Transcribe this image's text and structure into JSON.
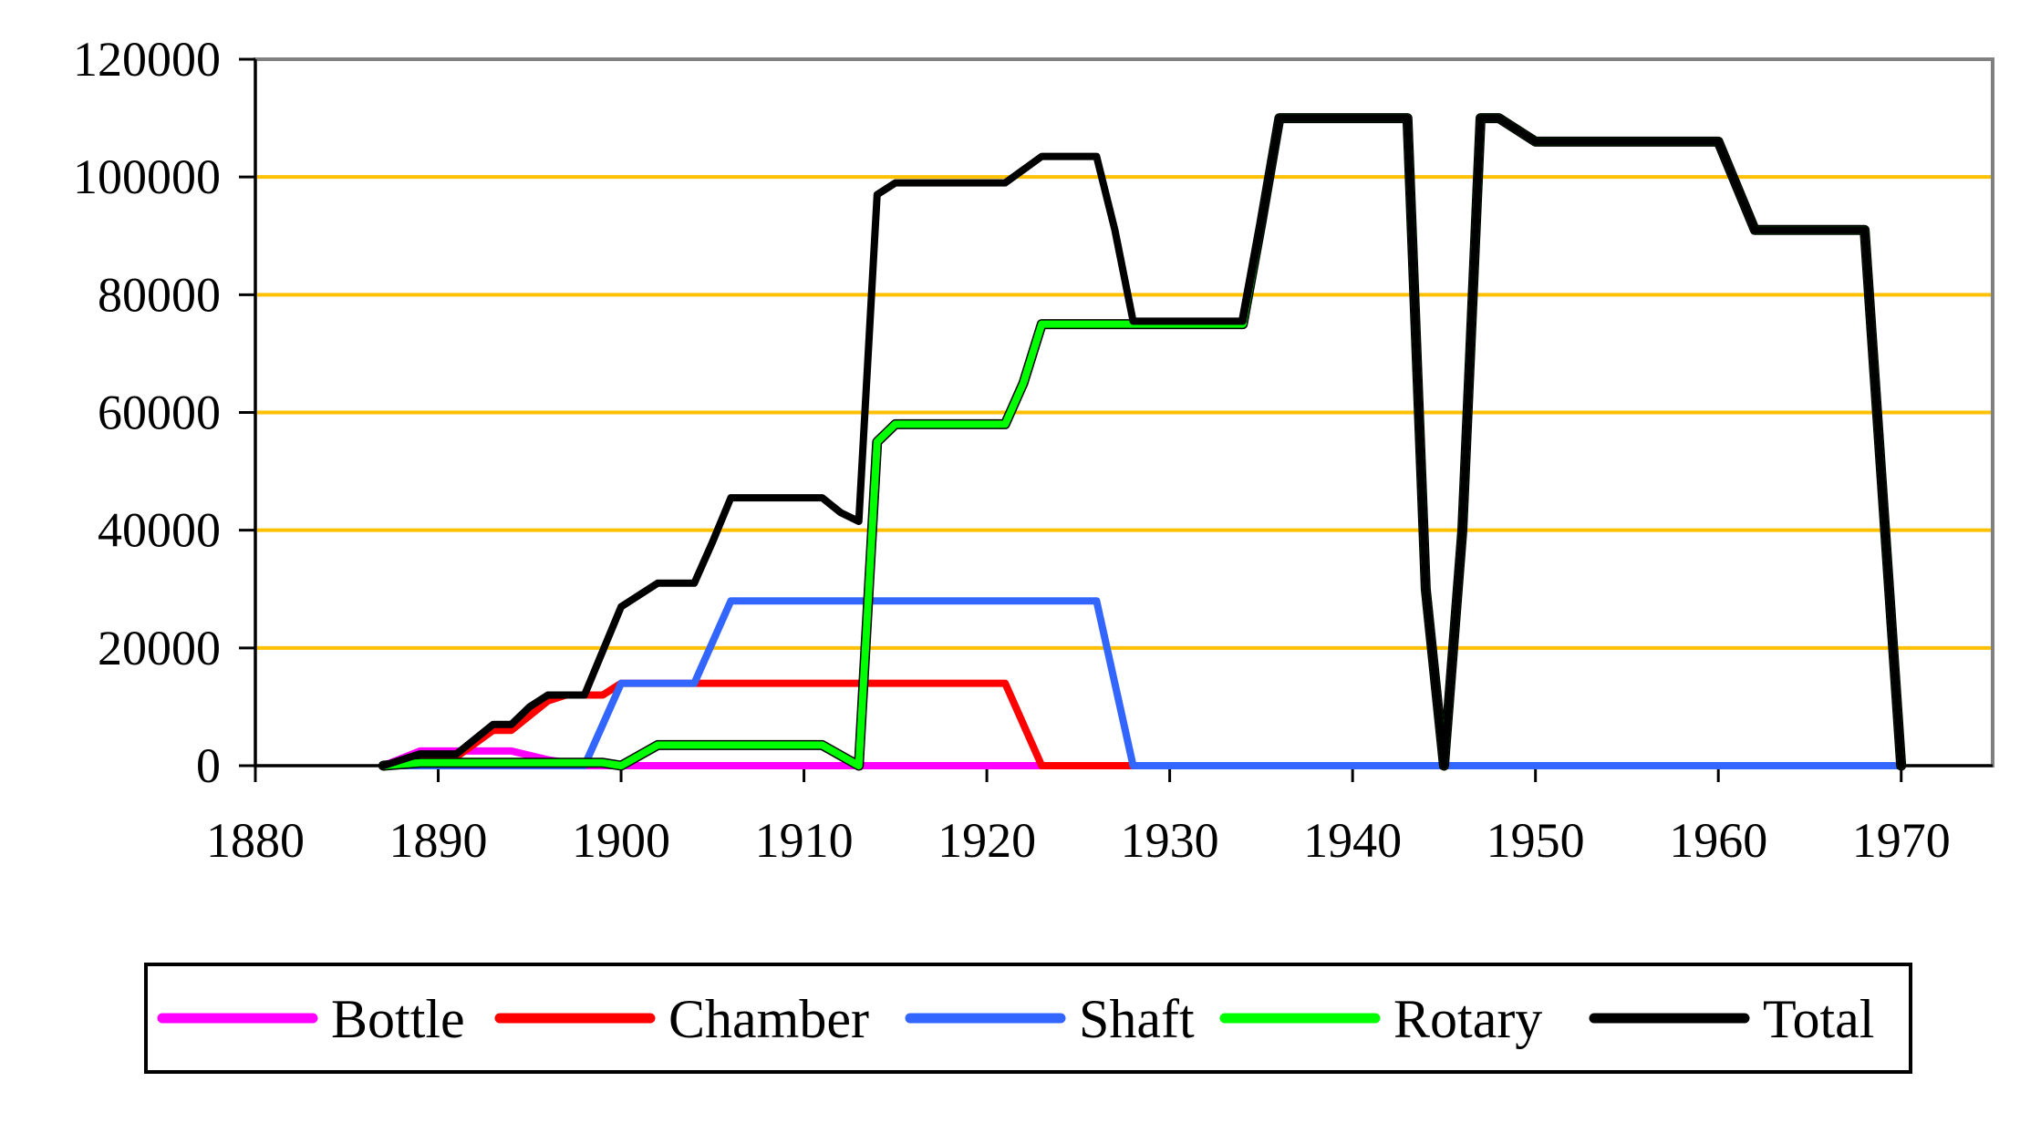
{
  "chart_data": {
    "type": "line",
    "title": "",
    "xlabel": "",
    "ylabel": "",
    "xlim": [
      1880,
      1975
    ],
    "ylim": [
      0,
      120000
    ],
    "x_ticks": [
      1880,
      1890,
      1900,
      1910,
      1920,
      1930,
      1940,
      1950,
      1960,
      1970
    ],
    "y_ticks": [
      0,
      20000,
      40000,
      60000,
      80000,
      100000,
      120000
    ],
    "x_tick_labels": [
      "1880",
      "1890",
      "1900",
      "1910",
      "1920",
      "1930",
      "1940",
      "1950",
      "1960",
      "1970"
    ],
    "y_tick_labels": [
      "0",
      "20000",
      "40000",
      "60000",
      "80000",
      "100000",
      "120000"
    ],
    "grid": "horizontal",
    "grid_color": "#FFC000",
    "legend_position": "bottom",
    "series": [
      {
        "name": "Bottle",
        "color": "#FF00FF",
        "points": [
          [
            1887,
            0
          ],
          [
            1889,
            2500
          ],
          [
            1891,
            2500
          ],
          [
            1893,
            2500
          ],
          [
            1894,
            2500
          ],
          [
            1896,
            1000
          ],
          [
            1898,
            0
          ],
          [
            1900,
            0
          ],
          [
            1913,
            0
          ],
          [
            1923,
            0
          ],
          [
            1928,
            0
          ],
          [
            1970,
            0
          ]
        ]
      },
      {
        "name": "Chamber",
        "color": "#FF0000",
        "points": [
          [
            1887,
            0
          ],
          [
            1889,
            1500
          ],
          [
            1891,
            1500
          ],
          [
            1893,
            6000
          ],
          [
            1894,
            6000
          ],
          [
            1896,
            11000
          ],
          [
            1897,
            12000
          ],
          [
            1899,
            12000
          ],
          [
            1900,
            14000
          ],
          [
            1904,
            14000
          ],
          [
            1921,
            14000
          ],
          [
            1923,
            0
          ],
          [
            1928,
            0
          ],
          [
            1970,
            0
          ]
        ]
      },
      {
        "name": "Shaft",
        "color": "#3366FF",
        "points": [
          [
            1887,
            0
          ],
          [
            1898,
            0
          ],
          [
            1900,
            14000
          ],
          [
            1904,
            14000
          ],
          [
            1906,
            28000
          ],
          [
            1926,
            28000
          ],
          [
            1928,
            0
          ],
          [
            1970,
            0
          ]
        ]
      },
      {
        "name": "Rotary",
        "color": "#00FF00",
        "points": [
          [
            1887,
            0
          ],
          [
            1889,
            500
          ],
          [
            1899,
            500
          ],
          [
            1900,
            0
          ],
          [
            1902,
            3500
          ],
          [
            1911,
            3500
          ],
          [
            1913,
            0
          ],
          [
            1914,
            55000
          ],
          [
            1915,
            58000
          ],
          [
            1921,
            58000
          ],
          [
            1922,
            65000
          ],
          [
            1923,
            75000
          ],
          [
            1928,
            75000
          ],
          [
            1934,
            75000
          ],
          [
            1935,
            92000
          ],
          [
            1936,
            110000
          ],
          [
            1943,
            110000
          ],
          [
            1944,
            30000
          ],
          [
            1945,
            0
          ],
          [
            1946,
            40000
          ],
          [
            1947,
            110000
          ],
          [
            1948,
            110000
          ],
          [
            1950,
            106000
          ],
          [
            1960,
            106000
          ],
          [
            1962,
            91000
          ],
          [
            1968,
            91000
          ],
          [
            1970,
            0
          ]
        ]
      },
      {
        "name": "Total",
        "color": "#000000",
        "points": [
          [
            1887,
            0
          ],
          [
            1889,
            2000
          ],
          [
            1891,
            2000
          ],
          [
            1893,
            7000
          ],
          [
            1894,
            7000
          ],
          [
            1895,
            10000
          ],
          [
            1896,
            12000
          ],
          [
            1898,
            12000
          ],
          [
            1900,
            27000
          ],
          [
            1902,
            31000
          ],
          [
            1904,
            31000
          ],
          [
            1905,
            38000
          ],
          [
            1906,
            45500
          ],
          [
            1911,
            45500
          ],
          [
            1912,
            43000
          ],
          [
            1913,
            41500
          ],
          [
            1914,
            97000
          ],
          [
            1915,
            99000
          ],
          [
            1921,
            99000
          ],
          [
            1923,
            103500
          ],
          [
            1926,
            103500
          ],
          [
            1927,
            91000
          ],
          [
            1928,
            75500
          ],
          [
            1934,
            75500
          ],
          [
            1935,
            92000
          ],
          [
            1936,
            110000
          ],
          [
            1943,
            110000
          ],
          [
            1944,
            30000
          ],
          [
            1945,
            0
          ],
          [
            1946,
            40000
          ],
          [
            1947,
            110000
          ],
          [
            1948,
            110000
          ],
          [
            1950,
            106000
          ],
          [
            1960,
            106000
          ],
          [
            1962,
            91000
          ],
          [
            1968,
            91000
          ],
          [
            1970,
            0
          ]
        ]
      }
    ]
  }
}
